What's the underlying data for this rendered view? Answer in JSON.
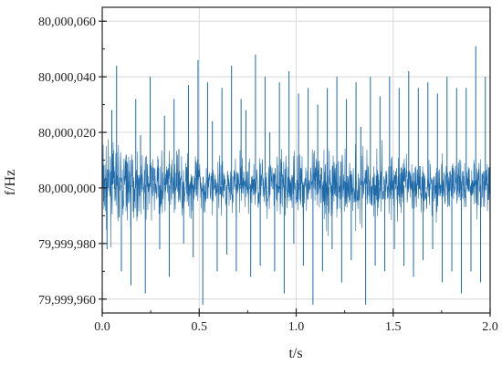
{
  "chart_data": {
    "type": "line",
    "title": "",
    "xlabel": "t/s",
    "ylabel": "f/Hz",
    "xlim": [
      0.0,
      2.0
    ],
    "ylim": [
      79999955,
      80000065
    ],
    "xticks": [
      0.0,
      0.5,
      1.0,
      1.5,
      2.0
    ],
    "xtick_labels": [
      "0.0",
      "0.5",
      "1.0",
      "1.5",
      "2.0"
    ],
    "yticks": [
      79999960,
      79999980,
      80000000,
      80000020,
      80000040,
      80000060
    ],
    "ytick_labels": [
      "79,999,960",
      "79,999,980",
      "80,000,000",
      "80,000,020",
      "80,000,040",
      "80,000,060"
    ],
    "grid": true,
    "legend": "none",
    "series": [
      {
        "color": "#1f6aa8",
        "x_start": 0.0,
        "x_end": 2.0,
        "baseline": 80000001,
        "values": [
          80000033,
          79999978,
          80000028,
          80000044,
          79999970,
          80000012,
          79999965,
          80000032,
          80000019,
          79999962,
          80000040,
          80000007,
          79999978,
          80000026,
          79999968,
          80000032,
          80000014,
          79999980,
          80000037,
          79999975,
          80000046,
          79999958,
          80000038,
          80000024,
          79999970,
          80000036,
          79999976,
          80000044,
          79999970,
          80000032,
          80000028,
          79999968,
          80000048,
          79999972,
          80000040,
          80000020,
          79999970,
          80000038,
          79999962,
          80000042,
          79999980,
          80000034,
          79999972,
          80000036,
          79999958,
          80000030,
          79999970,
          80000036,
          79999978,
          80000040,
          79999966,
          80000032,
          79999974,
          80000038,
          80000022,
          79999958,
          80000040,
          79999972,
          80000033,
          79999970,
          80000040,
          79999978,
          80000036,
          79999972,
          80000042,
          79999968,
          80000036,
          79999974,
          80000038,
          79999978,
          80000034,
          79999966,
          80000040,
          79999970,
          80000036,
          79999962,
          80000036,
          79999970,
          80000051,
          79999966,
          80000040,
          79999970
        ]
      }
    ]
  }
}
